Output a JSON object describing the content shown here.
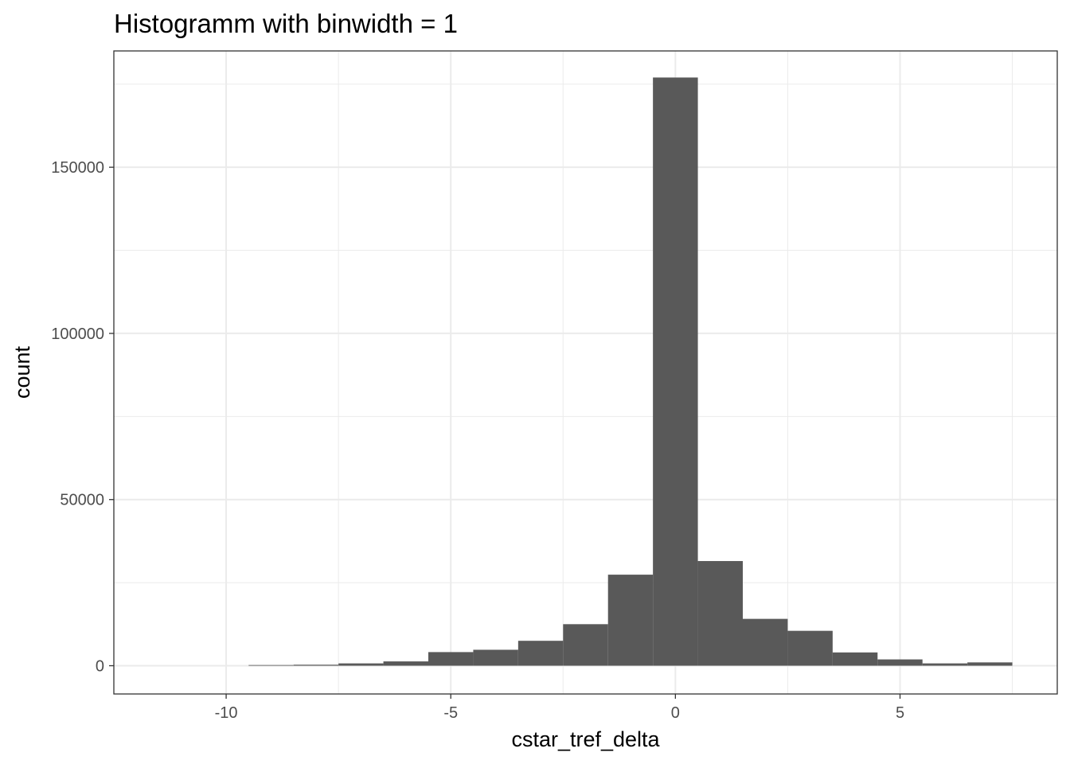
{
  "chart_data": {
    "type": "bar",
    "title": "Histogramm with binwidth = 1",
    "xlabel": "cstar_tref_delta",
    "ylabel": "count",
    "bin_width": 1,
    "xlim": [
      -12.5,
      8.5
    ],
    "ylim": [
      -8500,
      185000
    ],
    "x_ticks": [
      -10,
      -5,
      0,
      5
    ],
    "x_tick_labels": [
      "-10",
      "-5",
      "0",
      "5"
    ],
    "y_ticks": [
      0,
      50000,
      100000,
      150000
    ],
    "y_tick_labels": [
      "0",
      "50000",
      "100000",
      "150000"
    ],
    "grid": true,
    "bar_color": "#595959",
    "bin_centers": [
      -9,
      -8,
      -7,
      -6,
      -5,
      -4,
      -3,
      -2,
      -1,
      0,
      1,
      2,
      3,
      4,
      5,
      6,
      7
    ],
    "counts": [
      200,
      300,
      700,
      1300,
      4100,
      4800,
      7500,
      12500,
      27400,
      177000,
      31500,
      14100,
      10500,
      4000,
      1900,
      700,
      1000
    ]
  }
}
